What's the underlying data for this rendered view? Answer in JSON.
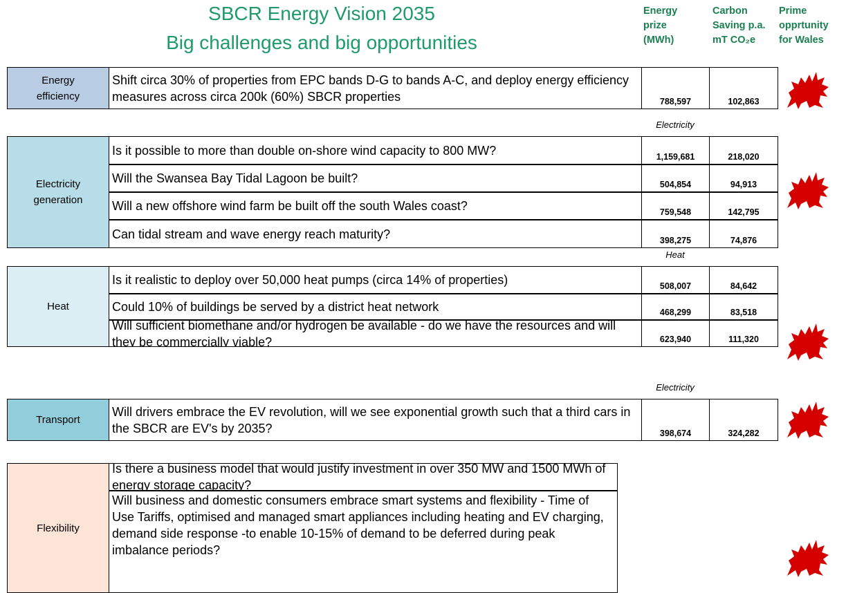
{
  "header": {
    "title": [
      "SBCR Energy Vision 2035",
      "Big challenges and big opportunities"
    ],
    "columns": [
      [
        "Energy",
        "prize",
        "(MWh)"
      ],
      [
        "Carbon",
        "Saving p.a.",
        "mT CO₂e"
      ],
      [
        "Prime",
        "opprtunity",
        "for Wales"
      ]
    ]
  },
  "sections": [
    {
      "label": "Energy efficiency",
      "rows": [
        {
          "text": "Shift circa 30% of properties from EPC bands D-G to bands A-C, and deploy energy efficiency measures across circa 200k (60%) SBCR properties",
          "energy": "788,597",
          "carbon": "102,863"
        }
      ]
    },
    {
      "note": "Electricity",
      "label": "Electricity generation",
      "rows": [
        {
          "text": "Is it possible to more than double on-shore wind capacity to 800 MW?",
          "energy": "1,159,681",
          "carbon": "218,020"
        },
        {
          "text": "Will the Swansea Bay Tidal Lagoon be built?",
          "energy": "504,854",
          "carbon": "94,913"
        },
        {
          "text": "Will a new offshore wind farm be built off the south Wales coast?",
          "energy": "759,548",
          "carbon": "142,795"
        },
        {
          "text": "Can tidal stream and wave energy reach maturity?",
          "energy": "398,275",
          "carbon": "74,876"
        }
      ]
    },
    {
      "note": "Heat",
      "label": "Heat",
      "rows": [
        {
          "text": "Is it realistic to deploy over 50,000 heat pumps (circa 14% of properties)",
          "energy": "508,007",
          "carbon": "84,642"
        },
        {
          "text": "Could 10% of buildings be served by a district heat network",
          "energy": "468,299",
          "carbon": "83,518"
        },
        {
          "text": "Will sufficient biomethane and/or hydrogen be available - do we have the resources and will they be commercially viable?",
          "energy": "623,940",
          "carbon": "111,320"
        }
      ]
    },
    {
      "note": "Electricity",
      "label": "Transport",
      "rows": [
        {
          "text": "Will drivers embrace the EV revolution, will we see exponential growth such that a third cars in the SBCR are EV's by 2035?",
          "energy": "398,674",
          "carbon": "324,282"
        }
      ]
    },
    {
      "label": "Flexibility",
      "rows": [
        {
          "text": "Is there a business model that would justify investment in over 350 MW and 1500 MWh of energy storage capacity?"
        },
        {
          "text": "Will business and domestic consumers embrace smart systems and flexibility - Time of Use Tariffs, optimised and managed smart appliances including heating and EV charging, demand side response -to enable 10-15% of demand to be deferred during peak imbalance periods?"
        }
      ]
    }
  ]
}
